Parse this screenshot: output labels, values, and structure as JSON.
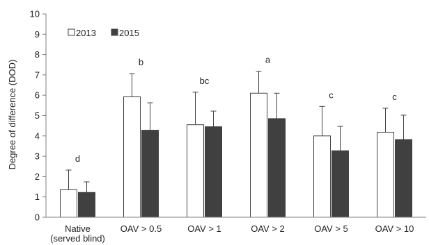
{
  "chart_data": {
    "type": "bar",
    "categories": [
      [
        "Native",
        "(served blind)"
      ],
      [
        "OAV > 0.5"
      ],
      [
        "OAV > 1"
      ],
      [
        "OAV > 2"
      ],
      [
        "OAV > 5"
      ],
      [
        "OAV > 10"
      ]
    ],
    "series": [
      {
        "name": "2013",
        "color": "#ffffff",
        "values": [
          1.35,
          5.92,
          4.55,
          6.1,
          4.0,
          4.18
        ],
        "errors": [
          0.97,
          1.14,
          1.6,
          1.08,
          1.45,
          1.18
        ]
      },
      {
        "name": "2015",
        "color": "#404040",
        "values": [
          1.22,
          4.28,
          4.45,
          4.85,
          3.27,
          3.82
        ],
        "errors": [
          0.52,
          1.35,
          0.77,
          1.25,
          1.2,
          1.2
        ]
      }
    ],
    "significance": [
      "d",
      "b",
      "bc",
      "a",
      "c",
      "c"
    ],
    "ylabel": "Degree of difference (DOD)",
    "ylim": [
      0,
      10
    ],
    "yticks": [
      0,
      1,
      2,
      3,
      4,
      5,
      6,
      7,
      8,
      9,
      10
    ],
    "grid": false,
    "legend_position": "top-left"
  }
}
